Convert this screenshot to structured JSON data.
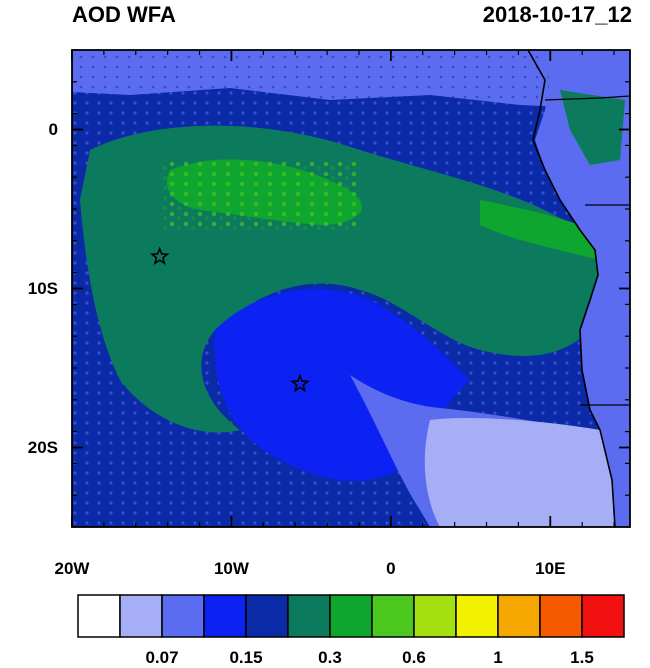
{
  "header": {
    "title": "AOD WFA",
    "datetime": "2018-10-17_12"
  },
  "axes": {
    "x_ticks": [
      {
        "value": -20,
        "label": "20W"
      },
      {
        "value": -10,
        "label": "10W"
      },
      {
        "value": 0,
        "label": "0"
      },
      {
        "value": 10,
        "label": "10E"
      }
    ],
    "y_ticks": [
      {
        "value": 0,
        "label": "0"
      },
      {
        "value": -10,
        "label": "10S"
      },
      {
        "value": -20,
        "label": "20S"
      }
    ],
    "lon_range": [
      -20,
      15
    ],
    "lat_range": [
      -25,
      5
    ]
  },
  "colorbar": {
    "colors": [
      "#ffffff",
      "#a6aef5",
      "#5b6cf0",
      "#0b22f2",
      "#0a2aa8",
      "#0c7a5c",
      "#0ea62e",
      "#4cc71d",
      "#a5e010",
      "#f2f200",
      "#f7a800",
      "#f55a00",
      "#f21010"
    ],
    "labels": [
      {
        "after_box": 2,
        "text": "0.07"
      },
      {
        "after_box": 4,
        "text": "0.15"
      },
      {
        "after_box": 6,
        "text": "0.3"
      },
      {
        "after_box": 8,
        "text": "0.6"
      },
      {
        "after_box": 10,
        "text": "1"
      },
      {
        "after_box": 12,
        "text": "1.5"
      }
    ]
  },
  "markers": [
    {
      "lon": -14.5,
      "lat": -8,
      "symbol": "star"
    },
    {
      "lon": -5.7,
      "lat": -16,
      "symbol": "star"
    }
  ],
  "colors": {
    "ocean_base": "#0b22f2",
    "plume_green": "#0c7a5c",
    "land_blue": "#5b6cf0",
    "clean_region": "#a6aef5",
    "coast": "#000000"
  }
}
